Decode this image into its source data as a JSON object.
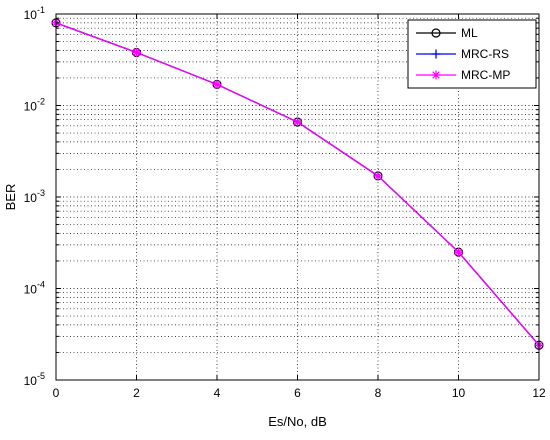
{
  "chart_data": {
    "type": "line",
    "title": "",
    "xlabel": "Es/No, dB",
    "ylabel": "BER",
    "x": [
      0,
      2,
      4,
      6,
      8,
      10,
      12
    ],
    "xlim": [
      0,
      12
    ],
    "ylim": [
      1e-05,
      0.1
    ],
    "y_scale": "log",
    "x_tick_labels": [
      "0",
      "2",
      "4",
      "6",
      "8",
      "10",
      "12"
    ],
    "y_tick_labels": [
      {
        "base": "10",
        "exp": "-5"
      },
      {
        "base": "10",
        "exp": "-4"
      },
      {
        "base": "10",
        "exp": "-3"
      },
      {
        "base": "10",
        "exp": "-2"
      },
      {
        "base": "10",
        "exp": "-1"
      }
    ],
    "grid": true,
    "legend_position": "top-right",
    "series": [
      {
        "name": "ML",
        "color": "#000000",
        "marker": "circle",
        "values": [
          0.08,
          0.038,
          0.017,
          0.0066,
          0.0017,
          0.00025,
          2.4e-05
        ]
      },
      {
        "name": "MRC-RS",
        "color": "#0000ff",
        "marker": "plus",
        "values": [
          0.08,
          0.038,
          0.017,
          0.0066,
          0.0017,
          0.00025,
          2.4e-05
        ]
      },
      {
        "name": "MRC-MP",
        "color": "#ff00ff",
        "marker": "star",
        "values": [
          0.08,
          0.038,
          0.017,
          0.0066,
          0.0017,
          0.00025,
          2.4e-05
        ]
      }
    ]
  }
}
